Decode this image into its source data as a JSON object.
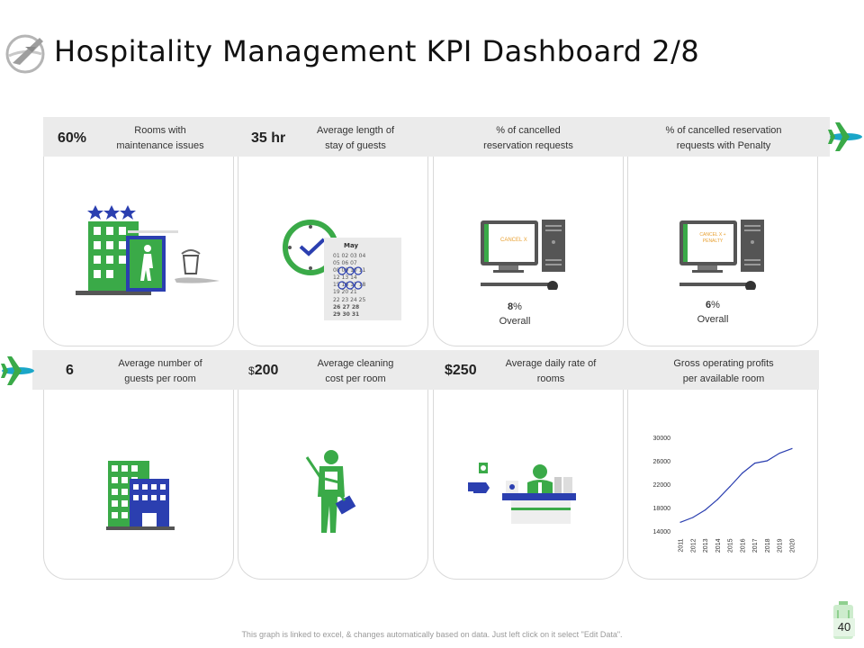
{
  "title": "Hospitality Management KPI Dashboard 2/8",
  "colors": {
    "green": "#3aaa48",
    "blue": "#2b3fb0",
    "teal": "#1aa6c8",
    "band": "#ebebeb"
  },
  "top_row": [
    {
      "value": "60%",
      "label_line1": "Rooms with",
      "label_line2": "maintenance issues",
      "icon": "hotel-maintenance-icon"
    },
    {
      "value": "35 hr",
      "label_line1": "Average length of",
      "label_line2": "stay of guests",
      "icon": "clock-calendar-icon"
    },
    {
      "value": "",
      "label_line1": "% of cancelled",
      "label_line2": "reservation requests",
      "icon": "computer-cancel-icon",
      "screen_text": "CANCEL X",
      "percent_num": "8",
      "percent_sym": "%",
      "overall": "Overall"
    },
    {
      "value": "",
      "label_line1": "% of cancelled reservation",
      "label_line2": "requests with Penalty",
      "icon": "computer-penalty-icon",
      "screen_text_1": "CANCEL X +",
      "screen_text_2": "PENALTY",
      "percent_num": "6",
      "percent_sym": "%",
      "overall": "Overall"
    }
  ],
  "bottom_row": [
    {
      "value": "6",
      "label_line1": "Average number of",
      "label_line2": "guests per room",
      "icon": "hotel-building-icon"
    },
    {
      "currency": "$",
      "value": "200",
      "label_line1": "Average cleaning",
      "label_line2": "cost per room",
      "icon": "cleaner-icon"
    },
    {
      "value": "$250",
      "label_line1": "Average daily rate of",
      "label_line2": "rooms",
      "icon": "reception-desk-icon"
    },
    {
      "value": "",
      "label_line1": "Gross operating profits",
      "label_line2": "per available room",
      "icon": ""
    }
  ],
  "calendar": {
    "month": "May",
    "rows": [
      "01 02 03 04",
      "05 06 07",
      "08 09 10 11",
      "12 13 14",
      "15 16 17 18",
      "19 20 21",
      "22 23 24 25",
      "26 27 28",
      "29 30 31"
    ]
  },
  "chart_data": {
    "type": "line",
    "x": [
      "2011",
      "2012",
      "2013",
      "2014",
      "2015",
      "2016",
      "2017",
      "2018",
      "2019",
      "2020"
    ],
    "series": [
      {
        "values": [
          15500,
          16300,
          17600,
          19400,
          21600,
          23900,
          25600,
          26000,
          27300,
          28100
        ]
      }
    ],
    "ylim": [
      14000,
      30000
    ],
    "yticks": [
      "30000",
      "26000",
      "22000",
      "18000",
      "14000"
    ],
    "color": "#2b3fb0",
    "grid": false
  },
  "footer": "This graph is linked to excel, & changes automatically based on data. Just left click on it select \"Edit Data\".",
  "page_number": "40"
}
